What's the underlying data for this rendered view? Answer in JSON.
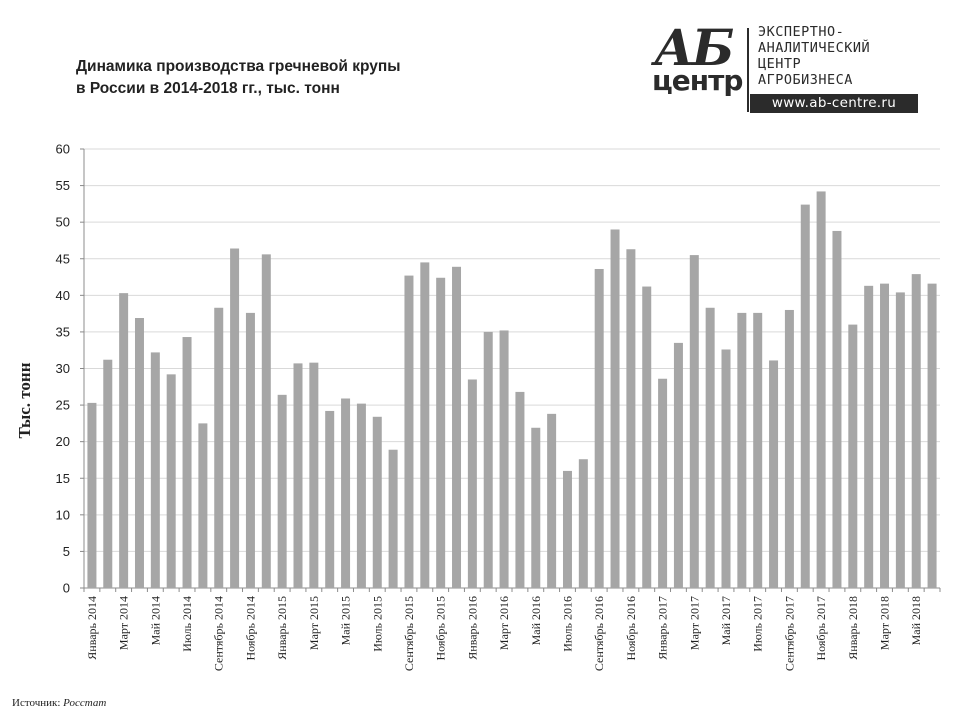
{
  "title": {
    "line1": "Динамика производства гречневой крупы",
    "line2": "в России в 2014-2018 гг., тыс. тонн"
  },
  "logo": {
    "mark_top": "АБ",
    "mark_bottom": "центр",
    "line1": "ЭКСПЕРТНО-",
    "line2": "АНАЛИТИЧЕСКИЙ",
    "line3": "ЦЕНТР",
    "line4": "АГРОБИЗНЕСА",
    "url": "www.ab-centre.ru"
  },
  "source": {
    "label": "Источник:",
    "name": "Росстат"
  },
  "chart_data": {
    "type": "bar",
    "title": "Динамика производства гречневой крупы в России в 2014-2018 гг., тыс. тонн",
    "ylabel": "Тыс. тонн",
    "xlabel": "",
    "ylim": [
      0,
      60
    ],
    "yticks": [
      0,
      5,
      10,
      15,
      20,
      25,
      30,
      35,
      40,
      45,
      50,
      55,
      60
    ],
    "grid": true,
    "bar_color": "#a6a6a6",
    "grid_color": "#d9d9d9",
    "categories": [
      "Январь 2014",
      "Февраль 2014",
      "Март 2014",
      "Апрель 2014",
      "Май 2014",
      "Июнь 2014",
      "Июль 2014",
      "Август 2014",
      "Сентябрь 2014",
      "Октябрь 2014",
      "Ноябрь 2014",
      "Декабрь 2014",
      "Январь 2015",
      "Февраль 2015",
      "Март 2015",
      "Апрель 2015",
      "Май 2015",
      "Июнь 2015",
      "Июль 2015",
      "Август 2015",
      "Сентябрь 2015",
      "Октябрь 2015",
      "Ноябрь 2015",
      "Декабрь 2015",
      "Январь 2016",
      "Февраль 2016",
      "Март 2016",
      "Апрель 2016",
      "Май 2016",
      "Июнь 2016",
      "Июль 2016",
      "Август 2016",
      "Сентябрь 2016",
      "Октябрь 2016",
      "Ноябрь 2016",
      "Декабрь 2016",
      "Январь 2017",
      "Февраль 2017",
      "Март 2017",
      "Апрель 2017",
      "Май 2017",
      "Июнь 2017",
      "Июль 2017",
      "Август 2017",
      "Сентябрь 2017",
      "Октябрь 2017",
      "Ноябрь 2017",
      "Декабрь 2017",
      "Январь 2018",
      "Февраль 2018",
      "Март 2018",
      "Апрель 2018",
      "Май 2018",
      "Июнь 2018"
    ],
    "tick_labels": [
      "Январь 2014",
      "Март 2014",
      "Май 2014",
      "Июль 2014",
      "Сентябрь 2014",
      "Ноябрь 2014",
      "Январь 2015",
      "Март 2015",
      "Май 2015",
      "Июль 2015",
      "Сентябрь 2015",
      "Ноябрь 2015",
      "Январь 2016",
      "Март 2016",
      "Май 2016",
      "Июль 2016",
      "Сентябрь 2016",
      "Ноябрь 2016",
      "Январь 2017",
      "Март 2017",
      "Май 2017",
      "Июль 2017",
      "Сентябрь 2017",
      "Ноябрь 2017",
      "Январь 2018",
      "Март 2018",
      "Май 2018"
    ],
    "values": [
      25.3,
      31.2,
      40.3,
      36.9,
      32.2,
      29.2,
      34.3,
      22.5,
      38.3,
      46.4,
      37.6,
      45.6,
      26.4,
      30.7,
      30.8,
      24.2,
      25.9,
      25.2,
      23.4,
      18.9,
      42.7,
      44.5,
      42.4,
      43.9,
      28.5,
      35.0,
      35.2,
      26.8,
      21.9,
      23.8,
      16.0,
      17.6,
      43.6,
      49.0,
      46.3,
      41.2,
      28.6,
      33.5,
      45.5,
      38.3,
      32.6,
      37.6,
      37.6,
      31.1,
      38.0,
      52.4,
      54.2,
      48.8,
      36.0,
      41.3,
      41.6,
      40.4,
      42.9,
      41.6
    ]
  }
}
